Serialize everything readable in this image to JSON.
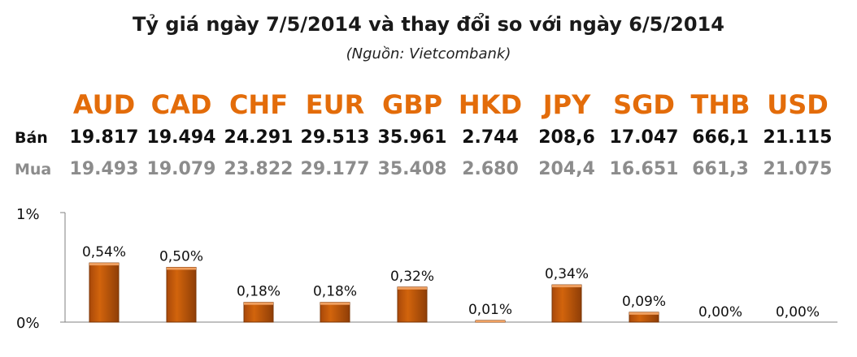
{
  "header": {
    "title": "Tỷ giá ngày 7/5/2014 và thay đổi so với ngày 6/5/2014",
    "subtitle": "(Nguồn: Vietcombank)"
  },
  "rate_table": {
    "sell_label": "Bán",
    "buy_label": "Mua",
    "currencies": [
      {
        "code": "AUD",
        "sell": "19.817",
        "buy": "19.493"
      },
      {
        "code": "CAD",
        "sell": "19.494",
        "buy": "19.079"
      },
      {
        "code": "CHF",
        "sell": "24.291",
        "buy": "23.822"
      },
      {
        "code": "EUR",
        "sell": "29.513",
        "buy": "29.177"
      },
      {
        "code": "GBP",
        "sell": "35.961",
        "buy": "35.408"
      },
      {
        "code": "HKD",
        "sell": "2.744",
        "buy": "2.680"
      },
      {
        "code": "JPY",
        "sell": "208,6",
        "buy": "204,4"
      },
      {
        "code": "SGD",
        "sell": "17.047",
        "buy": "16.651"
      },
      {
        "code": "THB",
        "sell": "666,1",
        "buy": "661,3"
      },
      {
        "code": "USD",
        "sell": "21.115",
        "buy": "21.075"
      }
    ]
  },
  "colors": {
    "accent": "#e36c0a",
    "bar_fill": "#d2640c",
    "bar_dark": "#7a3506",
    "buy_text": "#8c8c8c"
  },
  "chart_data": {
    "type": "bar",
    "categories": [
      "AUD",
      "CAD",
      "CHF",
      "EUR",
      "GBP",
      "HKD",
      "JPY",
      "SGD",
      "THB",
      "USD"
    ],
    "values": [
      0.54,
      0.5,
      0.18,
      0.18,
      0.32,
      0.01,
      0.34,
      0.09,
      0.0,
      0.0
    ],
    "data_labels": [
      "0,54%",
      "0,50%",
      "0,18%",
      "0,18%",
      "0,32%",
      "0,01%",
      "0,34%",
      "0,09%",
      "0,00%",
      "0,00%"
    ],
    "y_ticks": [
      "0%",
      "1%"
    ],
    "ylim": [
      0,
      1
    ],
    "grid": false,
    "legend": "none"
  }
}
